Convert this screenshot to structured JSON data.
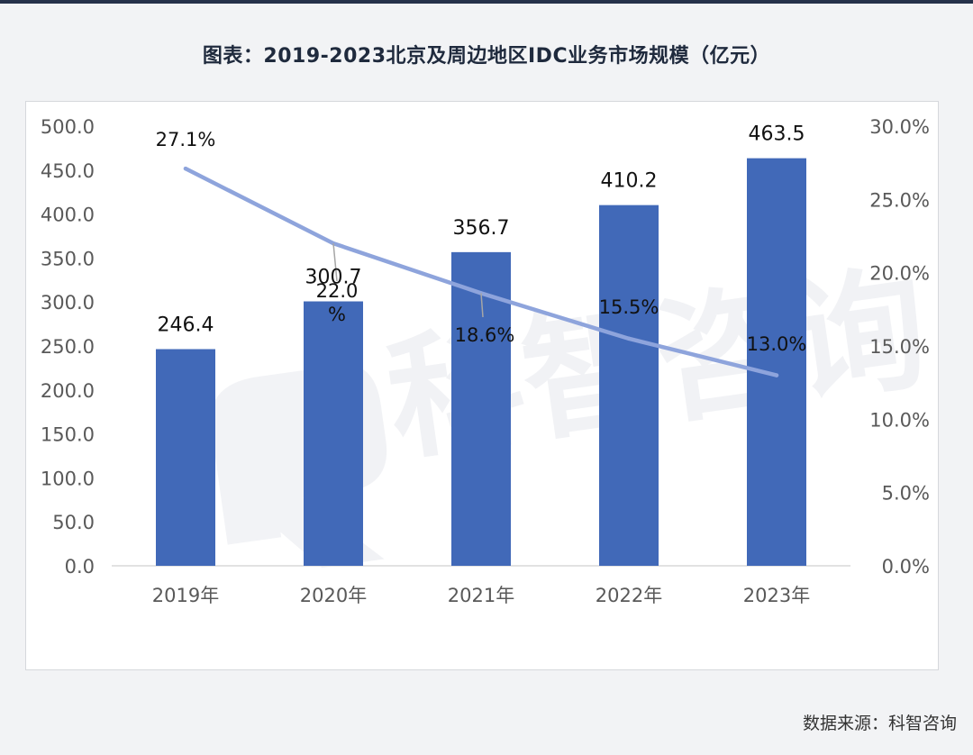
{
  "title": "图表：2019-2023北京及周边地区IDC业务市场规模（亿元）",
  "source": "数据来源：科智咨询",
  "watermark": "科智咨询",
  "colors": {
    "bar": "#4169b8",
    "line": "#8ea4dc",
    "axis": "#d9d9d9",
    "tick_text": "#595959"
  },
  "chart_data": {
    "type": "bar",
    "categories": [
      "2019年",
      "2020年",
      "2021年",
      "2022年",
      "2023年"
    ],
    "series": [
      {
        "type": "bar",
        "axis": "left",
        "values": [
          246.4,
          300.7,
          356.7,
          410.2,
          463.5
        ],
        "labels": [
          "246.4",
          "300.7",
          "356.7",
          "410.2",
          "463.5"
        ]
      },
      {
        "type": "line",
        "axis": "right",
        "values": [
          27.1,
          22.0,
          18.6,
          15.5,
          13.0
        ],
        "labels": [
          "27.1%",
          "22.0 %",
          "18.6%",
          "15.5%",
          "13.0%"
        ]
      }
    ],
    "y_left": {
      "lim": [
        0,
        500
      ],
      "ticks": [
        "0.0",
        "50.0",
        "100.0",
        "150.0",
        "200.0",
        "250.0",
        "300.0",
        "350.0",
        "400.0",
        "450.0",
        "500.0"
      ]
    },
    "y_right": {
      "lim": [
        0,
        30
      ],
      "ticks": [
        "0.0%",
        "5.0%",
        "10.0%",
        "15.0%",
        "20.0%",
        "25.0%",
        "30.0%"
      ]
    },
    "grid": false,
    "legend": "none"
  }
}
